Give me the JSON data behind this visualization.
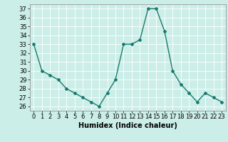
{
  "x": [
    0,
    1,
    2,
    3,
    4,
    5,
    6,
    7,
    8,
    9,
    10,
    11,
    12,
    13,
    14,
    15,
    16,
    17,
    18,
    19,
    20,
    21,
    22,
    23
  ],
  "y": [
    33,
    30,
    29.5,
    29,
    28,
    27.5,
    27,
    26.5,
    26,
    27.5,
    29,
    33,
    33,
    33.5,
    37,
    37,
    34.5,
    30,
    28.5,
    27.5,
    26.5,
    27.5,
    27,
    26.5
  ],
  "line_color": "#1a7a6e",
  "marker": "D",
  "marker_size": 2,
  "bg_color": "#cceee8",
  "grid_color": "#ffffff",
  "xlabel": "Humidex (Indice chaleur)",
  "xlabel_fontsize": 7,
  "tick_fontsize": 6,
  "ylim": [
    25.5,
    37.5
  ],
  "yticks": [
    26,
    27,
    28,
    29,
    30,
    31,
    32,
    33,
    34,
    35,
    36,
    37
  ],
  "xlim": [
    -0.5,
    23.5
  ],
  "xticks": [
    0,
    1,
    2,
    3,
    4,
    5,
    6,
    7,
    8,
    9,
    10,
    11,
    12,
    13,
    14,
    15,
    16,
    17,
    18,
    19,
    20,
    21,
    22,
    23
  ]
}
